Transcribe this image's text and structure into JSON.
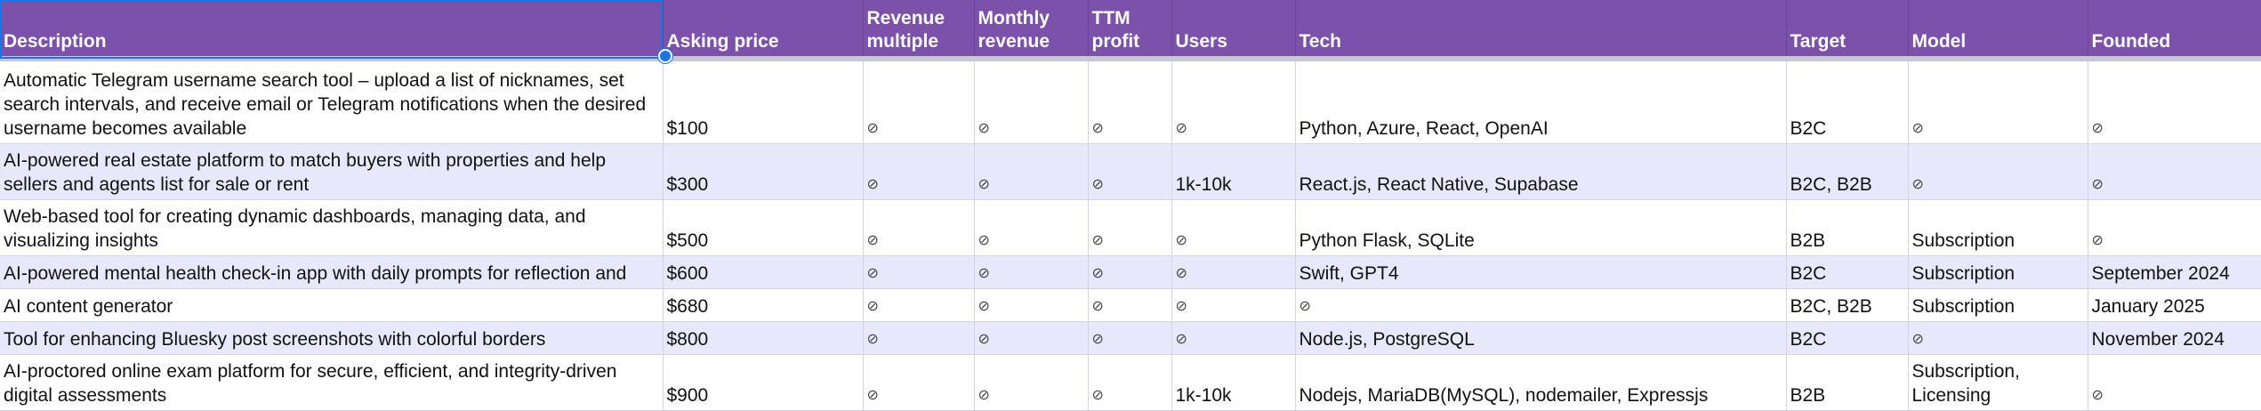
{
  "header": {
    "description": "Description",
    "asking_price": "Asking price",
    "revenue_multiple_1": "Revenue",
    "revenue_multiple_2": "multiple",
    "monthly_revenue_1": "Monthly",
    "monthly_revenue_2": "revenue",
    "ttm_profit_1": "TTM",
    "ttm_profit_2": "profit",
    "users": "Users",
    "tech": "Tech",
    "target": "Target",
    "model": "Model",
    "founded": "Founded"
  },
  "empty_glyph": "⊘",
  "rows": [
    {
      "description": "Automatic Telegram username search tool – upload a list of nicknames, set search intervals, and receive email or Telegram notifications when the desired username becomes available",
      "asking_price": "$100",
      "revenue_multiple": "⊘",
      "monthly_revenue": "⊘",
      "ttm_profit": "⊘",
      "users": "⊘",
      "tech": "Python, Azure, React, OpenAI",
      "target": "B2C",
      "model": "⊘",
      "founded": "⊘"
    },
    {
      "description": "AI-powered real estate platform to match buyers with properties and help sellers and agents list for sale or rent",
      "asking_price": "$300",
      "revenue_multiple": "⊘",
      "monthly_revenue": "⊘",
      "ttm_profit": "⊘",
      "users": "1k-10k",
      "tech": "React.js, React Native, Supabase",
      "target": "B2C, B2B",
      "model": "⊘",
      "founded": "⊘"
    },
    {
      "description": "Web-based tool for creating dynamic dashboards, managing data, and visualizing insights",
      "asking_price": "$500",
      "revenue_multiple": "⊘",
      "monthly_revenue": "⊘",
      "ttm_profit": "⊘",
      "users": "⊘",
      "tech": "Python Flask, SQLite",
      "target": "B2B",
      "model": "Subscription",
      "founded": "⊘"
    },
    {
      "description": "AI-powered mental health check-in app with daily prompts for reflection and",
      "asking_price": "$600",
      "revenue_multiple": "⊘",
      "monthly_revenue": "⊘",
      "ttm_profit": "⊘",
      "users": "⊘",
      "tech": "Swift, GPT4",
      "target": "B2C",
      "model": "Subscription",
      "founded": "September 2024"
    },
    {
      "description": "AI content generator",
      "asking_price": "$680",
      "revenue_multiple": "⊘",
      "monthly_revenue": "⊘",
      "ttm_profit": "⊘",
      "users": "⊘",
      "tech": "⊘",
      "target": "B2C, B2B",
      "model": "Subscription",
      "founded": "January 2025"
    },
    {
      "description": "Tool for enhancing Bluesky post screenshots with colorful borders",
      "asking_price": "$800",
      "revenue_multiple": "⊘",
      "monthly_revenue": "⊘",
      "ttm_profit": "⊘",
      "users": "⊘",
      "tech": "Node.js, PostgreSQL",
      "target": "B2C",
      "model": "⊘",
      "founded": "November 2024"
    },
    {
      "description": "AI-proctored online exam platform for secure, efficient, and integrity-driven digital assessments",
      "asking_price": "$900",
      "revenue_multiple": "⊘",
      "monthly_revenue": "⊘",
      "ttm_profit": "⊘",
      "users": "1k-10k",
      "tech": "Nodejs, MariaDB(MySQL), nodemailer, Expressjs",
      "target": "B2B",
      "model": "Subscription, Licensing",
      "founded": "⊘"
    }
  ]
}
